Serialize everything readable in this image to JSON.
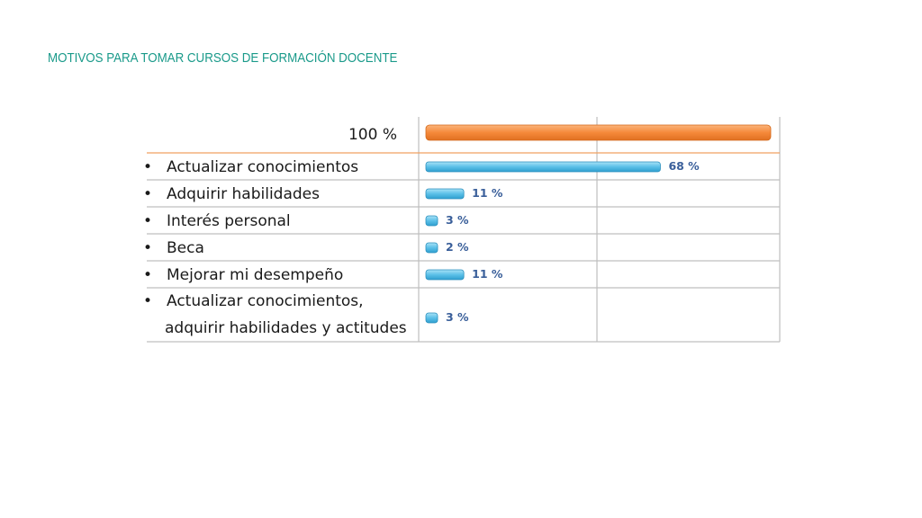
{
  "title": "MOTIVOS PARA TOMAR CURSOS DE FORMACIÓN DOCENTE",
  "colors": {
    "title": "#1a9a8a",
    "reference_bar": "#f5893a",
    "data_bar": "#5bc0e8",
    "value_label": "#3a5f9a",
    "grid": "#bfbfbf",
    "header_rule": "#f0a060"
  },
  "chart_data": {
    "type": "bar",
    "orientation": "horizontal",
    "reference": {
      "label": "100 %",
      "value": 100
    },
    "categories": [
      [
        "Actualizar conocimientos"
      ],
      [
        "Adquirir habilidades"
      ],
      [
        "Interés personal"
      ],
      [
        "Beca"
      ],
      [
        "Mejorar mi desempeño"
      ],
      [
        "Actualizar conocimientos,",
        "adquirir habilidades y actitudes"
      ]
    ],
    "values": [
      68,
      11,
      3,
      2,
      11,
      3
    ],
    "value_labels": [
      "68 %",
      "11 %",
      "3 %",
      "2 %",
      "11 %",
      "3 %"
    ],
    "xlim": [
      0,
      100
    ],
    "bullet": "•"
  }
}
